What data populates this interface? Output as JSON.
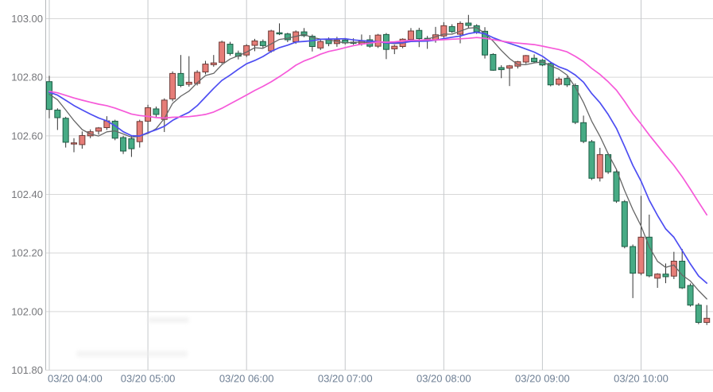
{
  "chart_data": {
    "type": "candlestick",
    "title": "",
    "xlabel": "",
    "ylabel": "",
    "date": "03/20",
    "interval": "5min",
    "grid": true,
    "legend_position": "none",
    "color_convention": "red = bullish (close>open), green = bearish (close<open)",
    "ylim": [
      101.8,
      103.05
    ],
    "y_ticks": [
      {
        "value": 103.0,
        "label": "103.00"
      },
      {
        "value": 102.8,
        "label": "102.80"
      },
      {
        "value": 102.6,
        "label": "102.60"
      },
      {
        "value": 102.4,
        "label": "102.40"
      },
      {
        "value": 102.2,
        "label": "102.20"
      },
      {
        "value": 102.0,
        "label": "102.00"
      },
      {
        "value": 101.8,
        "label": "101.80"
      }
    ],
    "x_ticks": [
      {
        "index": 0,
        "label": "03/20 04:00"
      },
      {
        "index": 12,
        "label": "03/20 05:00"
      },
      {
        "index": 24,
        "label": "03/20 06:00"
      },
      {
        "index": 36,
        "label": "03/20 07:00"
      },
      {
        "index": 48,
        "label": "03/20 08:00"
      },
      {
        "index": 60,
        "label": "03/20 09:00"
      },
      {
        "index": 72,
        "label": "03/20 10:00"
      }
    ],
    "moving_averages": [
      {
        "name": "ma-short",
        "period": 5,
        "color": "#666666",
        "width": 1.3
      },
      {
        "name": "ma-medium",
        "period": 10,
        "color": "#4d4df2",
        "width": 1.7
      },
      {
        "name": "ma-long",
        "period": 20,
        "color": "#f659d9",
        "width": 1.7
      }
    ],
    "ma_seed_value": 102.755,
    "colors": {
      "up_fill": "#e67d78",
      "up_border": "#6d3a36",
      "down_fill": "#47ab85",
      "down_border": "#1e5c45",
      "wick": "#333333",
      "grid_h": "#d8d8d8",
      "grid_v": "#c5c8cb",
      "axis_line": "#b5b8bb",
      "y_label": "#76777b",
      "x_label": "#6e7f94",
      "background": "#ffffff"
    },
    "candles": [
      {
        "t": "04:00",
        "o": 102.785,
        "h": 102.805,
        "l": 102.66,
        "c": 102.69
      },
      {
        "t": "04:05",
        "o": 102.688,
        "h": 102.694,
        "l": 102.62,
        "c": 102.662
      },
      {
        "t": "04:10",
        "o": 102.66,
        "h": 102.665,
        "l": 102.56,
        "c": 102.578
      },
      {
        "t": "04:15",
        "o": 102.572,
        "h": 102.592,
        "l": 102.544,
        "c": 102.576
      },
      {
        "t": "04:20",
        "o": 102.57,
        "h": 102.615,
        "l": 102.556,
        "c": 102.601
      },
      {
        "t": "04:25",
        "o": 102.6,
        "h": 102.622,
        "l": 102.592,
        "c": 102.614
      },
      {
        "t": "04:30",
        "o": 102.616,
        "h": 102.63,
        "l": 102.604,
        "c": 102.627
      },
      {
        "t": "04:35",
        "o": 102.628,
        "h": 102.667,
        "l": 102.62,
        "c": 102.651
      },
      {
        "t": "04:40",
        "o": 102.65,
        "h": 102.655,
        "l": 102.585,
        "c": 102.592
      },
      {
        "t": "04:45",
        "o": 102.594,
        "h": 102.6,
        "l": 102.538,
        "c": 102.548
      },
      {
        "t": "04:50",
        "o": 102.59,
        "h": 102.602,
        "l": 102.528,
        "c": 102.556
      },
      {
        "t": "04:55",
        "o": 102.58,
        "h": 102.655,
        "l": 102.56,
        "c": 102.649
      },
      {
        "t": "05:00",
        "o": 102.65,
        "h": 102.706,
        "l": 102.608,
        "c": 102.696
      },
      {
        "t": "05:05",
        "o": 102.692,
        "h": 102.7,
        "l": 102.663,
        "c": 102.673
      },
      {
        "t": "05:10",
        "o": 102.656,
        "h": 102.728,
        "l": 102.613,
        "c": 102.722
      },
      {
        "t": "05:15",
        "o": 102.726,
        "h": 102.82,
        "l": 102.718,
        "c": 102.813
      },
      {
        "t": "05:20",
        "o": 102.813,
        "h": 102.876,
        "l": 102.766,
        "c": 102.772
      },
      {
        "t": "05:25",
        "o": 102.776,
        "h": 102.872,
        "l": 102.768,
        "c": 102.783
      },
      {
        "t": "05:30",
        "o": 102.779,
        "h": 102.824,
        "l": 102.772,
        "c": 102.817
      },
      {
        "t": "05:35",
        "o": 102.818,
        "h": 102.856,
        "l": 102.81,
        "c": 102.845
      },
      {
        "t": "05:40",
        "o": 102.843,
        "h": 102.876,
        "l": 102.836,
        "c": 102.849
      },
      {
        "t": "05:45",
        "o": 102.851,
        "h": 102.925,
        "l": 102.846,
        "c": 102.92
      },
      {
        "t": "05:50",
        "o": 102.913,
        "h": 102.921,
        "l": 102.874,
        "c": 102.881
      },
      {
        "t": "05:55",
        "o": 102.882,
        "h": 102.891,
        "l": 102.861,
        "c": 102.872
      },
      {
        "t": "06:00",
        "o": 102.876,
        "h": 102.913,
        "l": 102.869,
        "c": 102.908
      },
      {
        "t": "06:05",
        "o": 102.909,
        "h": 102.931,
        "l": 102.889,
        "c": 102.924
      },
      {
        "t": "06:10",
        "o": 102.922,
        "h": 102.929,
        "l": 102.901,
        "c": 102.908
      },
      {
        "t": "06:15",
        "o": 102.89,
        "h": 102.962,
        "l": 102.884,
        "c": 102.958
      },
      {
        "t": "06:20",
        "o": 102.952,
        "h": 102.984,
        "l": 102.944,
        "c": 102.948
      },
      {
        "t": "06:25",
        "o": 102.948,
        "h": 102.952,
        "l": 102.92,
        "c": 102.928
      },
      {
        "t": "06:30",
        "o": 102.921,
        "h": 102.96,
        "l": 102.914,
        "c": 102.955
      },
      {
        "t": "06:35",
        "o": 102.955,
        "h": 102.968,
        "l": 102.937,
        "c": 102.942
      },
      {
        "t": "06:40",
        "o": 102.94,
        "h": 102.946,
        "l": 102.888,
        "c": 102.905
      },
      {
        "t": "06:45",
        "o": 102.9,
        "h": 102.928,
        "l": 102.893,
        "c": 102.922
      },
      {
        "t": "06:50",
        "o": 102.928,
        "h": 102.936,
        "l": 102.906,
        "c": 102.915
      },
      {
        "t": "06:55",
        "o": 102.915,
        "h": 102.938,
        "l": 102.904,
        "c": 102.927
      },
      {
        "t": "07:00",
        "o": 102.927,
        "h": 102.934,
        "l": 102.912,
        "c": 102.917
      },
      {
        "t": "07:05",
        "o": 102.92,
        "h": 102.933,
        "l": 102.911,
        "c": 102.916
      },
      {
        "t": "07:10",
        "o": 102.914,
        "h": 102.946,
        "l": 102.908,
        "c": 102.924
      },
      {
        "t": "07:15",
        "o": 102.928,
        "h": 102.944,
        "l": 102.901,
        "c": 102.906
      },
      {
        "t": "07:20",
        "o": 102.906,
        "h": 102.948,
        "l": 102.9,
        "c": 102.944
      },
      {
        "t": "07:25",
        "o": 102.946,
        "h": 102.951,
        "l": 102.862,
        "c": 102.895
      },
      {
        "t": "07:30",
        "o": 102.897,
        "h": 102.911,
        "l": 102.879,
        "c": 102.906
      },
      {
        "t": "07:35",
        "o": 102.905,
        "h": 102.933,
        "l": 102.899,
        "c": 102.93
      },
      {
        "t": "07:40",
        "o": 102.929,
        "h": 102.968,
        "l": 102.921,
        "c": 102.958
      },
      {
        "t": "07:45",
        "o": 102.96,
        "h": 102.969,
        "l": 102.903,
        "c": 102.932
      },
      {
        "t": "07:50",
        "o": 102.933,
        "h": 102.941,
        "l": 102.897,
        "c": 102.926
      },
      {
        "t": "07:55",
        "o": 102.928,
        "h": 102.972,
        "l": 102.918,
        "c": 102.945
      },
      {
        "t": "08:00",
        "o": 102.941,
        "h": 102.988,
        "l": 102.934,
        "c": 102.976
      },
      {
        "t": "08:05",
        "o": 102.973,
        "h": 102.981,
        "l": 102.951,
        "c": 102.956
      },
      {
        "t": "08:10",
        "o": 102.947,
        "h": 102.991,
        "l": 102.916,
        "c": 102.984
      },
      {
        "t": "08:15",
        "o": 102.985,
        "h": 103.013,
        "l": 102.968,
        "c": 102.977
      },
      {
        "t": "08:20",
        "o": 102.976,
        "h": 102.981,
        "l": 102.948,
        "c": 102.955
      },
      {
        "t": "08:25",
        "o": 102.957,
        "h": 102.971,
        "l": 102.864,
        "c": 102.876
      },
      {
        "t": "08:30",
        "o": 102.878,
        "h": 102.882,
        "l": 102.822,
        "c": 102.824
      },
      {
        "t": "08:35",
        "o": 102.833,
        "h": 102.841,
        "l": 102.797,
        "c": 102.826
      },
      {
        "t": "08:40",
        "o": 102.831,
        "h": 102.842,
        "l": 102.77,
        "c": 102.839
      },
      {
        "t": "08:45",
        "o": 102.838,
        "h": 102.856,
        "l": 102.83,
        "c": 102.853
      },
      {
        "t": "08:50",
        "o": 102.852,
        "h": 102.876,
        "l": 102.846,
        "c": 102.874
      },
      {
        "t": "08:55",
        "o": 102.865,
        "h": 102.878,
        "l": 102.85,
        "c": 102.853
      },
      {
        "t": "09:00",
        "o": 102.858,
        "h": 102.862,
        "l": 102.838,
        "c": 102.842
      },
      {
        "t": "09:05",
        "o": 102.847,
        "h": 102.852,
        "l": 102.769,
        "c": 102.774
      },
      {
        "t": "09:10",
        "o": 102.776,
        "h": 102.801,
        "l": 102.771,
        "c": 102.794
      },
      {
        "t": "09:15",
        "o": 102.796,
        "h": 102.803,
        "l": 102.767,
        "c": 102.774
      },
      {
        "t": "09:20",
        "o": 102.772,
        "h": 102.779,
        "l": 102.64,
        "c": 102.646
      },
      {
        "t": "09:25",
        "o": 102.645,
        "h": 102.669,
        "l": 102.575,
        "c": 102.581
      },
      {
        "t": "09:30",
        "o": 102.58,
        "h": 102.586,
        "l": 102.449,
        "c": 102.455
      },
      {
        "t": "09:35",
        "o": 102.456,
        "h": 102.559,
        "l": 102.444,
        "c": 102.536
      },
      {
        "t": "09:40",
        "o": 102.536,
        "h": 102.541,
        "l": 102.47,
        "c": 102.477
      },
      {
        "t": "09:45",
        "o": 102.477,
        "h": 102.483,
        "l": 102.371,
        "c": 102.377
      },
      {
        "t": "09:50",
        "o": 102.375,
        "h": 102.381,
        "l": 102.216,
        "c": 102.222
      },
      {
        "t": "09:55",
        "o": 102.222,
        "h": 102.229,
        "l": 102.046,
        "c": 102.131
      },
      {
        "t": "10:00",
        "o": 102.131,
        "h": 102.395,
        "l": 102.124,
        "c": 102.254
      },
      {
        "t": "10:05",
        "o": 102.254,
        "h": 102.331,
        "l": 102.117,
        "c": 102.122
      },
      {
        "t": "10:10",
        "o": 102.114,
        "h": 102.131,
        "l": 102.081,
        "c": 102.128
      },
      {
        "t": "10:15",
        "o": 102.128,
        "h": 102.164,
        "l": 102.097,
        "c": 102.119
      },
      {
        "t": "10:20",
        "o": 102.121,
        "h": 102.204,
        "l": 102.111,
        "c": 102.172
      },
      {
        "t": "10:25",
        "o": 102.172,
        "h": 102.214,
        "l": 102.077,
        "c": 102.081
      },
      {
        "t": "10:30",
        "o": 102.089,
        "h": 102.096,
        "l": 102.017,
        "c": 102.022
      },
      {
        "t": "10:35",
        "o": 102.022,
        "h": 102.029,
        "l": 101.957,
        "c": 101.963
      },
      {
        "t": "10:40",
        "o": 101.963,
        "h": 102.022,
        "l": 101.954,
        "c": 101.977
      }
    ]
  }
}
